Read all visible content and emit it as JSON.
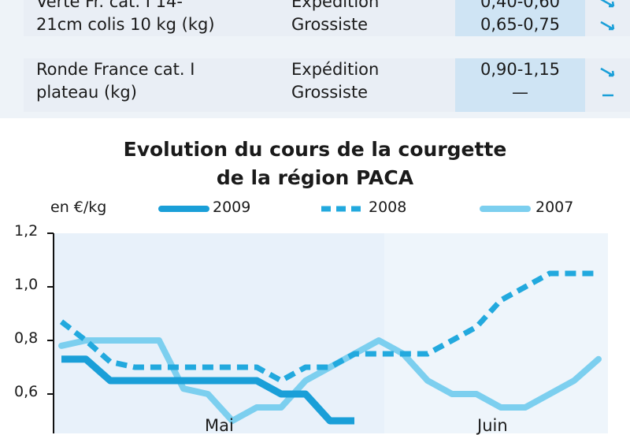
{
  "table": {
    "rows": [
      {
        "product_lines": [
          "Verte Fr. cat. I 14-",
          "21cm colis 10 kg (kg)"
        ],
        "stages": [
          "Expédition",
          "Grossiste"
        ],
        "prices": [
          "0,40-0,60",
          "0,65-0,75"
        ],
        "trends": [
          "down",
          "down"
        ]
      },
      {
        "product_lines": [
          "Ronde France cat. I",
          "plateau (kg)"
        ],
        "stages": [
          "Expédition",
          "Grossiste"
        ],
        "prices": [
          "0,90-1,15",
          "—"
        ],
        "trends": [
          "down",
          "flat"
        ]
      }
    ]
  },
  "chart_data": {
    "type": "line",
    "title_lines": [
      "Evolution du cours de la courgette",
      "de la région PACA"
    ],
    "unit_label": "en €/kg",
    "ylim": [
      0.4,
      1.2
    ],
    "y_ticks": [
      "1,2",
      "1,0",
      "0,8",
      "0,6"
    ],
    "x_months": [
      "Mai",
      "Juin"
    ],
    "x_range": [
      0,
      22
    ],
    "june_start": 13,
    "colors": {
      "2009": "#1a9fd8",
      "2008": "#22a9de",
      "2007": "#7ccfef"
    },
    "series": [
      {
        "name": "2009",
        "style": "solid-thick",
        "x": [
          0,
          1,
          2,
          3,
          4,
          5,
          6,
          7,
          8,
          9,
          10,
          11,
          12
        ],
        "y": [
          0.73,
          0.73,
          0.65,
          0.65,
          0.65,
          0.65,
          0.65,
          0.65,
          0.65,
          0.6,
          0.6,
          0.5,
          0.5
        ]
      },
      {
        "name": "2008",
        "style": "dashed",
        "x": [
          0,
          1,
          2,
          3,
          4,
          5,
          6,
          7,
          8,
          9,
          10,
          11,
          12,
          13,
          14,
          15,
          16,
          17,
          18,
          19,
          20,
          21,
          22
        ],
        "y": [
          0.87,
          0.8,
          0.72,
          0.7,
          0.7,
          0.7,
          0.7,
          0.7,
          0.7,
          0.65,
          0.7,
          0.7,
          0.75,
          0.75,
          0.75,
          0.75,
          0.8,
          0.85,
          0.95,
          1.0,
          1.05,
          1.05,
          1.05
        ]
      },
      {
        "name": "2007",
        "style": "solid-light",
        "x": [
          0,
          1,
          2,
          3,
          4,
          5,
          6,
          7,
          8,
          9,
          10,
          11,
          12,
          13,
          14,
          15,
          16,
          17,
          18,
          19,
          20,
          21,
          22
        ],
        "y": [
          0.78,
          0.8,
          0.8,
          0.8,
          0.8,
          0.62,
          0.6,
          0.5,
          0.55,
          0.55,
          0.65,
          0.7,
          0.75,
          0.8,
          0.75,
          0.65,
          0.6,
          0.6,
          0.55,
          0.55,
          0.6,
          0.65,
          0.73
        ]
      }
    ]
  }
}
